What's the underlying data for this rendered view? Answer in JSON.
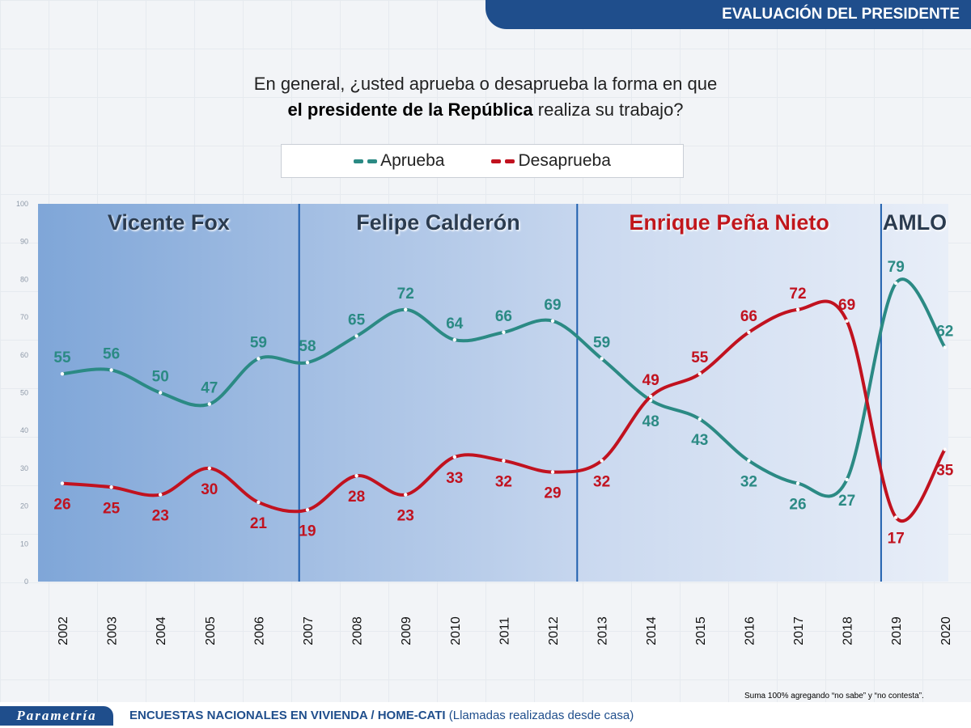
{
  "header": {
    "title": "EVALUACIÓN DEL PRESIDENTE"
  },
  "question": {
    "line1": "En general, ¿usted aprueba o desaprueba la forma en que",
    "line2_bold": "el presidente de la República",
    "line2_rest": " realiza su trabajo?"
  },
  "footer": {
    "logo": "Parametría",
    "survey_bold": "ENCUESTAS NACIONALES EN VIVIENDA / HOME-CATI",
    "survey_rest": " (Llamadas realizadas desde casa)",
    "note": "Suma 100% agregando “no sabe” y “no contesta”."
  },
  "colors": {
    "aprueba": "#2b8a84",
    "desaprueba": "#c1121f",
    "divider": "#1f5fae",
    "header": "#1f4e8c",
    "epn_label": "#c1121f",
    "other_labels": "#2c3a4f"
  },
  "chart_data": {
    "type": "line",
    "x": [
      "2002",
      "2003",
      "2004",
      "2005",
      "2006",
      "2007",
      "2008",
      "2009",
      "2010",
      "2011",
      "2012",
      "2013",
      "2014",
      "2015",
      "2016",
      "2017",
      "2018",
      "2019",
      "2020"
    ],
    "ylim": [
      0,
      100
    ],
    "yticks": [
      "0",
      "10",
      "20",
      "30",
      "40",
      "50",
      "60",
      "70",
      "80",
      "90",
      "100"
    ],
    "series": [
      {
        "name": "Aprueba",
        "values": [
          55,
          56,
          50,
          47,
          59,
          58,
          65,
          72,
          64,
          66,
          69,
          59,
          48,
          43,
          32,
          26,
          27,
          79,
          62
        ]
      },
      {
        "name": "Desaprueba",
        "values": [
          26,
          25,
          23,
          30,
          21,
          19,
          28,
          23,
          33,
          32,
          29,
          32,
          49,
          55,
          66,
          72,
          69,
          17,
          35
        ]
      }
    ],
    "periods": [
      {
        "label": "Vicente Fox",
        "start": "2002",
        "end": "2006"
      },
      {
        "label": "Felipe Calderón",
        "start": "2007",
        "end": "2012"
      },
      {
        "label": "Enrique Peña Nieto",
        "start": "2013",
        "end": "2018"
      },
      {
        "label": "AMLO",
        "start": "2019",
        "end": "2020"
      }
    ]
  }
}
